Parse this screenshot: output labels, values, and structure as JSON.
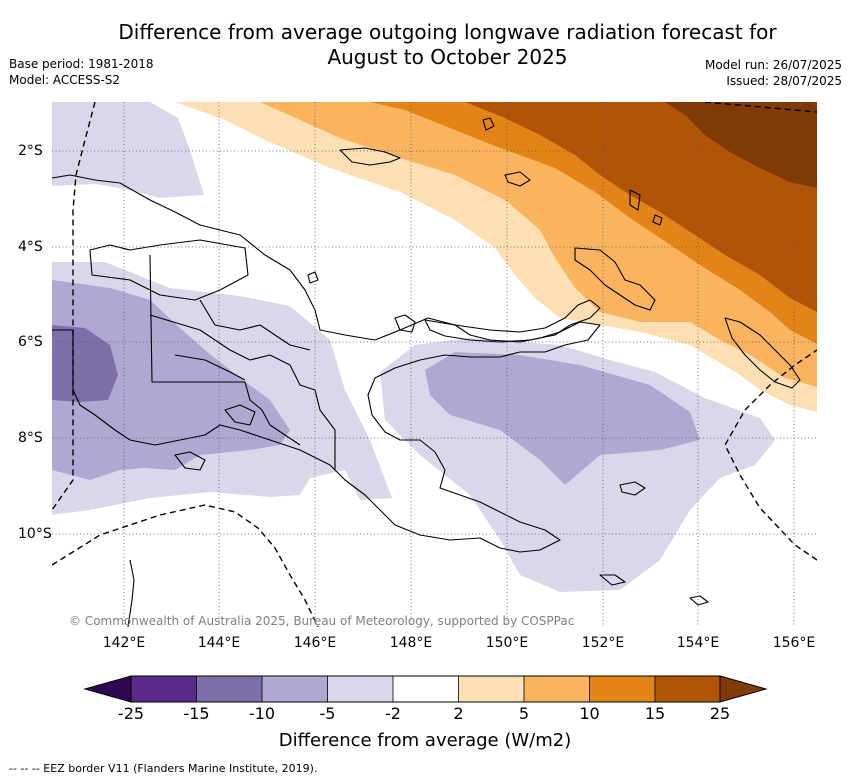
{
  "title_line1": "Difference from average outgoing longwave radiation forecast for",
  "title_line2": "August to October 2025",
  "meta": {
    "base_period": "Base period: 1981-2018",
    "model": "Model: ACCESS-S2",
    "model_run": "Model run: 26/07/2025",
    "issued": "Issued: 28/07/2025"
  },
  "map": {
    "lon_labels": [
      "142°E",
      "144°E",
      "146°E",
      "148°E",
      "150°E",
      "152°E",
      "154°E",
      "156°E"
    ],
    "lat_labels": [
      "2°S",
      "4°S",
      "6°S",
      "8°S",
      "10°S"
    ],
    "copyright": "© Commonwealth of Australia 2025, Bureau of Meteorology, supported by COSPPac"
  },
  "colorbar": {
    "labels": [
      "-25",
      "-15",
      "-10",
      "-5",
      "-2",
      "2",
      "5",
      "10",
      "15",
      "25"
    ],
    "colors": [
      "#300850",
      "#5a2a8a",
      "#7e6eaa",
      "#afa8d2",
      "#d9d8ea",
      "#ffffff",
      "#fddfb4",
      "#fab460",
      "#e28418",
      "#b15407",
      "#7f3a05"
    ],
    "title": "Difference from average (W/m2)"
  },
  "footnote": "--  --  -- EEZ border V11 (Flanders Marine Institute, 2019)."
}
